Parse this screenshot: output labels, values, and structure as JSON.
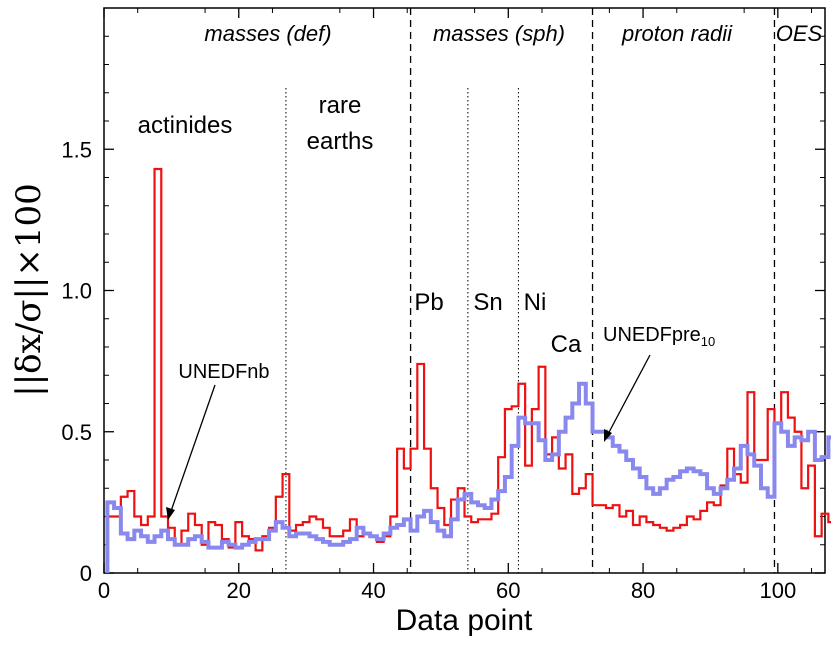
{
  "chart_data": {
    "type": "line",
    "step": true,
    "xlabel": "Data point",
    "ylabel": "||δx/σ||×100",
    "xlim": [
      0,
      107
    ],
    "ylim": [
      0,
      2.0
    ],
    "xticks": [
      0,
      20,
      40,
      60,
      80,
      100
    ],
    "yticks": [
      0,
      0.5,
      1.0,
      1.5
    ],
    "ytick_labels": [
      "0",
      "0.5",
      "1.0",
      "1.5"
    ],
    "series": [
      {
        "name": "UNEDFnb",
        "color": "#ee1111",
        "values": [
          0.2,
          0.2,
          0.27,
          0.29,
          0.2,
          0.17,
          0.2,
          1.43,
          0.2,
          0.16,
          0.1,
          0.15,
          0.21,
          0.17,
          0.1,
          0.18,
          0.17,
          0.12,
          0.09,
          0.18,
          0.13,
          0.12,
          0.08,
          0.13,
          0.16,
          0.27,
          0.35,
          0.15,
          0.17,
          0.18,
          0.2,
          0.19,
          0.16,
          0.13,
          0.13,
          0.15,
          0.19,
          0.13,
          0.14,
          0.13,
          0.11,
          0.13,
          0.2,
          0.44,
          0.37,
          0.44,
          0.74,
          0.44,
          0.3,
          0.23,
          0.17,
          0.26,
          0.3,
          0.2,
          0.18,
          0.19,
          0.19,
          0.21,
          0.41,
          0.58,
          0.59,
          0.67,
          0.38,
          0.58,
          0.73,
          0.42,
          0.48,
          0.37,
          0.42,
          0.28,
          0.3,
          0.35,
          0.24,
          0.24,
          0.23,
          0.24,
          0.2,
          0.22,
          0.17,
          0.2,
          0.18,
          0.17,
          0.16,
          0.15,
          0.16,
          0.17,
          0.2,
          0.19,
          0.22,
          0.25,
          0.24,
          0.31,
          0.44,
          0.35,
          0.32,
          0.64,
          0.4,
          0.4,
          0.58,
          0.53,
          0.64,
          0.55,
          0.5,
          0.3,
          0.38,
          0.13,
          0.21,
          0.18
        ]
      },
      {
        "name": "UNEDFpre10",
        "color": "#8888ee",
        "values": [
          0.25,
          0.23,
          0.14,
          0.12,
          0.15,
          0.13,
          0.11,
          0.13,
          0.15,
          0.12,
          0.1,
          0.1,
          0.12,
          0.13,
          0.11,
          0.09,
          0.09,
          0.11,
          0.1,
          0.09,
          0.1,
          0.11,
          0.12,
          0.12,
          0.15,
          0.18,
          0.16,
          0.13,
          0.14,
          0.14,
          0.13,
          0.12,
          0.11,
          0.1,
          0.1,
          0.11,
          0.12,
          0.16,
          0.14,
          0.13,
          0.12,
          0.14,
          0.16,
          0.17,
          0.19,
          0.15,
          0.2,
          0.22,
          0.18,
          0.15,
          0.13,
          0.19,
          0.26,
          0.28,
          0.25,
          0.24,
          0.23,
          0.26,
          0.29,
          0.34,
          0.45,
          0.55,
          0.53,
          0.53,
          0.47,
          0.4,
          0.42,
          0.5,
          0.55,
          0.6,
          0.67,
          0.6,
          0.5,
          0.5,
          0.48,
          0.45,
          0.43,
          0.4,
          0.37,
          0.34,
          0.3,
          0.28,
          0.3,
          0.33,
          0.34,
          0.36,
          0.37,
          0.36,
          0.35,
          0.3,
          0.28,
          0.3,
          0.33,
          0.37,
          0.45,
          0.42,
          0.38,
          0.3,
          0.27,
          0.53,
          0.5,
          0.45,
          0.48,
          0.47,
          0.5,
          0.4,
          0.41,
          0.48
        ]
      }
    ],
    "region_dividers": [
      {
        "x": 45.5,
        "style": "dashed"
      },
      {
        "x": 72.5,
        "style": "dashed"
      },
      {
        "x": 99.5,
        "style": "dashed"
      },
      {
        "x": 27,
        "style": "dotted"
      },
      {
        "x": 54,
        "style": "dotted"
      },
      {
        "x": 61.5,
        "style": "dotted"
      }
    ],
    "region_labels": [
      "masses (def)",
      "masses (sph)",
      "proton radii",
      "OES"
    ],
    "annotations": {
      "actinides": "actinides",
      "rare_earths_line1": "rare",
      "rare_earths_line2": "earths",
      "pb": "Pb",
      "sn": "Sn",
      "ni": "Ni",
      "ca": "Ca",
      "unedfnb": "UNEDFnb",
      "unedfpre": "UNEDFpre",
      "unedfpre_sub": "10"
    }
  }
}
